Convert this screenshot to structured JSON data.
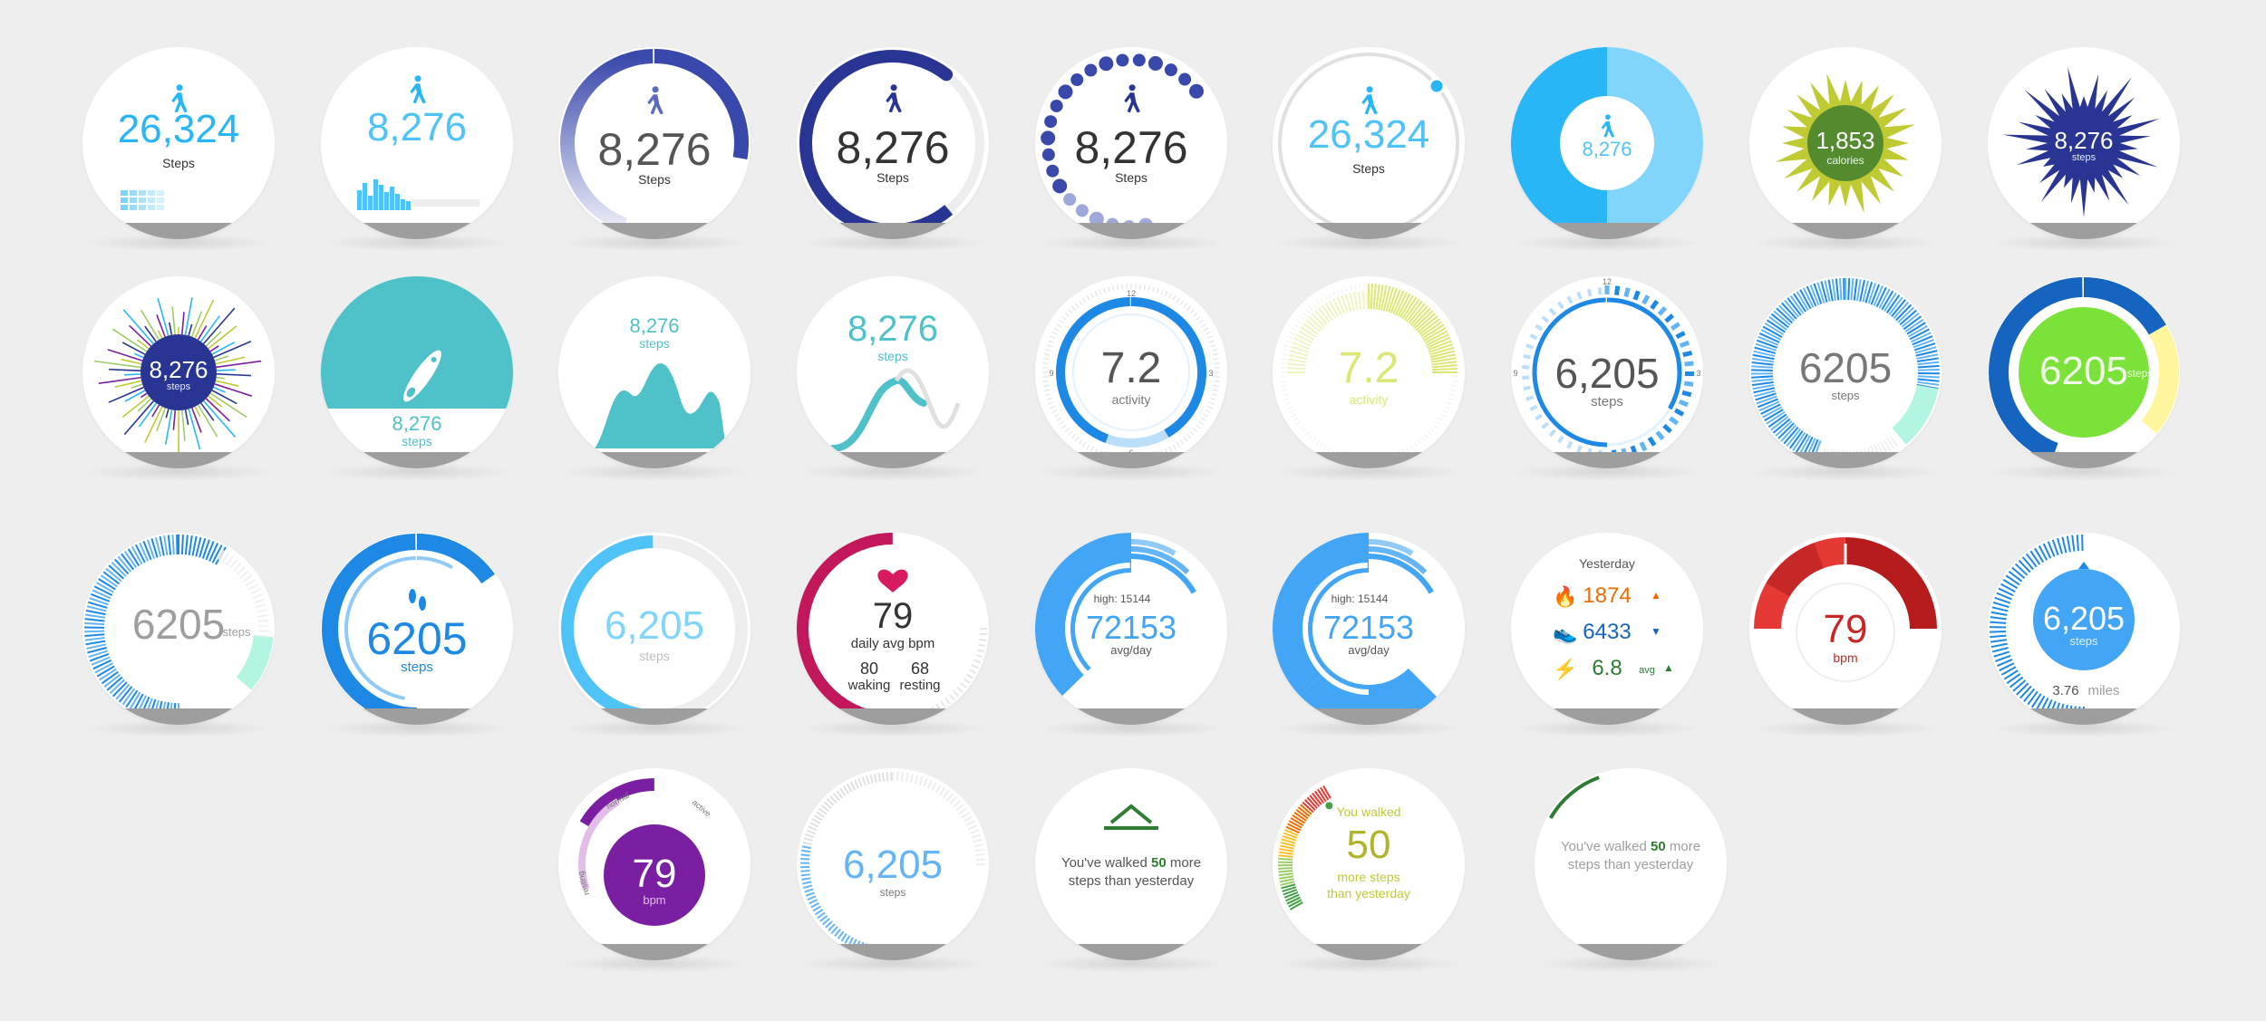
{
  "colors": {
    "background": "#eeeeee",
    "face": "#ffffff",
    "chin": "#9e9e9e",
    "cyan": "#4fc3f7",
    "blue": "#1e88e5",
    "navy": "#283593",
    "teal": "#4fc1c9",
    "magenta": "#c2185b",
    "red": "#c62828",
    "purple": "#7b1fa2",
    "green": "#2e7d32",
    "lime": "#c0ca33"
  },
  "watchfaces": [
    {
      "id": "f01",
      "value": "26,324",
      "label": "Steps",
      "icon": "walking-person-icon",
      "style": "plain-bars"
    },
    {
      "id": "f02",
      "value": "8,276",
      "label": "",
      "icon": "walking-person-icon",
      "style": "histogram"
    },
    {
      "id": "f03",
      "value": "8,276",
      "label": "Steps",
      "icon": "walking-person-icon",
      "style": "gradient-arc"
    },
    {
      "id": "f04",
      "value": "8,276",
      "label": "Steps",
      "icon": "walking-person-icon",
      "style": "navy-arc"
    },
    {
      "id": "f05",
      "value": "8,276",
      "label": "Steps",
      "icon": "walking-person-icon",
      "style": "dot-ring"
    },
    {
      "id": "f06",
      "value": "26,324",
      "label": "Steps",
      "icon": "walking-person-icon",
      "style": "thin-ring"
    },
    {
      "id": "f07",
      "value": "8,276",
      "label": "",
      "icon": "walking-person-icon",
      "style": "blue-donut"
    },
    {
      "id": "f08",
      "value": "1,853",
      "label": "calories",
      "icon": "",
      "style": "green-starburst"
    },
    {
      "id": "f09",
      "value": "8,276",
      "label": "steps",
      "icon": "",
      "style": "navy-splat"
    },
    {
      "id": "f10",
      "value": "8,276",
      "label": "steps",
      "icon": "",
      "style": "rays"
    },
    {
      "id": "f11",
      "value": "8,276",
      "label": "steps",
      "icon": "shoe-icon",
      "style": "teal-top"
    },
    {
      "id": "f12",
      "value": "8,276",
      "label": "steps",
      "icon": "",
      "style": "teal-hills"
    },
    {
      "id": "f13",
      "value": "8,276",
      "label": "steps",
      "icon": "",
      "style": "teal-line"
    },
    {
      "id": "f14",
      "value": "7.2",
      "label": "activity",
      "icon": "",
      "style": "blue-clock",
      "ticks": [
        "12",
        "3",
        "6",
        "9"
      ]
    },
    {
      "id": "f15",
      "value": "7.2",
      "label": "activity",
      "icon": "",
      "style": "lime-clock"
    },
    {
      "id": "f16",
      "value": "6,205",
      "label": "steps",
      "icon": "",
      "style": "dashed-clock",
      "ticks": [
        "12",
        "3",
        "6",
        "9"
      ]
    },
    {
      "id": "f17",
      "value": "6205",
      "label": "steps",
      "icon": "",
      "style": "tick-ring"
    },
    {
      "id": "f18",
      "value": "6205",
      "label": "steps",
      "icon": "",
      "style": "green-disc"
    },
    {
      "id": "f19",
      "value": "6205",
      "label": "steps",
      "icon": "",
      "style": "left-ticks"
    },
    {
      "id": "f20",
      "value": "6205",
      "label": "steps",
      "icon": "footprints-icon",
      "style": "blue-swoosh"
    },
    {
      "id": "f21",
      "value": "6,205",
      "label": "steps",
      "icon": "",
      "style": "soft-arc"
    },
    {
      "id": "f22",
      "value": "79",
      "label": "daily avg bpm",
      "icon": "heart-icon",
      "style": "heart",
      "waking": "80",
      "waking_label": "waking",
      "resting": "68",
      "resting_label": "resting"
    },
    {
      "id": "f23",
      "value": "72153",
      "label": "avg/day",
      "high": "high: 15144",
      "icon": "",
      "style": "blue-fan"
    },
    {
      "id": "f24",
      "value": "72153",
      "label": "avg/day",
      "high": "high: 15144",
      "icon": "",
      "style": "blue-fan2"
    },
    {
      "id": "f25",
      "title": "Yesterday",
      "style": "yesterday",
      "rows": [
        {
          "icon": "flame-icon",
          "value": "1874",
          "suffix": "",
          "arrow": "up",
          "color": "#ef6c00"
        },
        {
          "icon": "shoe-icon",
          "value": "6433",
          "suffix": "",
          "arrow": "down",
          "color": "#1565c0"
        },
        {
          "icon": "bolt-icon",
          "value": "6.8",
          "suffix": "avg",
          "arrow": "up",
          "color": "#2e7d32"
        }
      ]
    },
    {
      "id": "f26",
      "value": "79",
      "label": "bpm",
      "icon": "",
      "style": "red-gauge"
    },
    {
      "id": "f27",
      "value": "6,205",
      "label": "steps",
      "miles": "3.76",
      "miles_label": "miles",
      "icon": "",
      "style": "blue-disc-ticks"
    },
    {
      "id": "f28",
      "value": "79",
      "label": "bpm",
      "icon": "",
      "style": "purple-gauge",
      "zones": [
        "resting",
        "normal",
        "active"
      ]
    },
    {
      "id": "f29",
      "value": "6,205",
      "label": "steps",
      "icon": "",
      "style": "faint-ticks"
    },
    {
      "id": "f30",
      "line1": "You've walked ",
      "highlight": "50",
      "line1b": " more",
      "line2": "steps than yesterday",
      "icon": "chevron-up-icon",
      "style": "message"
    },
    {
      "id": "f31",
      "top": "You walked",
      "value": "50",
      "line2": "more steps",
      "line3": "than yesterday",
      "icon": "",
      "style": "color-gauge"
    },
    {
      "id": "f32",
      "line1": "You've walked ",
      "highlight": "50",
      "line1b": " more",
      "line2": "steps than yesterday",
      "icon": "",
      "style": "message2"
    }
  ]
}
